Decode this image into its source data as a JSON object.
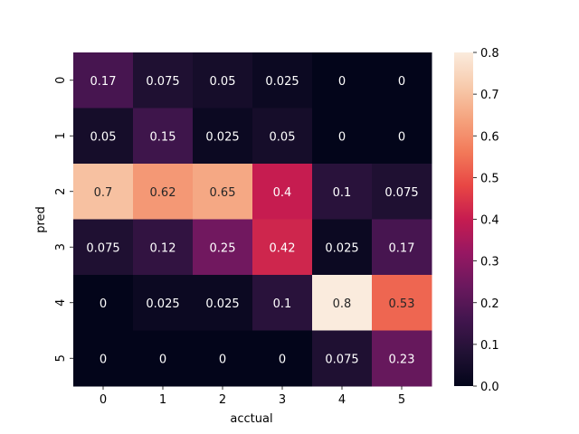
{
  "chart_data": {
    "type": "heatmap",
    "title": "",
    "xlabel": "acctual",
    "ylabel": "pred",
    "x_categories": [
      "0",
      "1",
      "2",
      "3",
      "4",
      "5"
    ],
    "y_categories": [
      "0",
      "1",
      "2",
      "3",
      "4",
      "5"
    ],
    "values": [
      [
        0.17,
        0.075,
        0.05,
        0.025,
        0,
        0
      ],
      [
        0.05,
        0.15,
        0.025,
        0.05,
        0,
        0
      ],
      [
        0.7,
        0.62,
        0.65,
        0.4,
        0.1,
        0.075
      ],
      [
        0.075,
        0.12,
        0.25,
        0.42,
        0.025,
        0.17
      ],
      [
        0,
        0.025,
        0.025,
        0.1,
        0.8,
        0.53
      ],
      [
        0,
        0,
        0,
        0,
        0.075,
        0.23
      ]
    ],
    "labels": [
      [
        "0.17",
        "0.075",
        "0.05",
        "0.025",
        "0",
        "0"
      ],
      [
        "0.05",
        "0.15",
        "0.025",
        "0.05",
        "0",
        "0"
      ],
      [
        "0.7",
        "0.62",
        "0.65",
        "0.4",
        "0.1",
        "0.075"
      ],
      [
        "0.075",
        "0.12",
        "0.25",
        "0.42",
        "0.025",
        "0.17"
      ],
      [
        "0",
        "0.025",
        "0.025",
        "0.1",
        "0.8",
        "0.53"
      ],
      [
        "0",
        "0",
        "0",
        "0",
        "0.075",
        "0.23"
      ]
    ],
    "colormap": "rocket",
    "vmin": 0.0,
    "vmax": 0.8,
    "colorbar_ticks": [
      "0.0",
      "0.1",
      "0.2",
      "0.3",
      "0.4",
      "0.5",
      "0.6",
      "0.7",
      "0.8"
    ],
    "colorbar_values": [
      0.0,
      0.1,
      0.2,
      0.3,
      0.4,
      0.5,
      0.6,
      0.7,
      0.8
    ],
    "colorbar_location": "right"
  }
}
